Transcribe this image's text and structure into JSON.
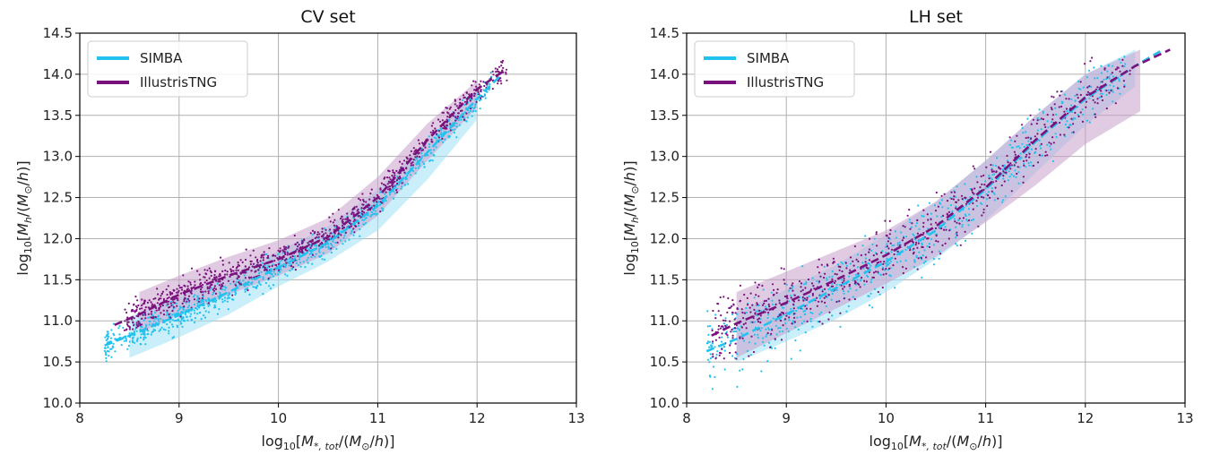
{
  "colors": {
    "simba": "#22c1ee",
    "tng": "#7a127d",
    "simba_band": "#9fe0f5",
    "tng_band": "#c8a0cc",
    "grid": "#b0b0b0"
  },
  "chart_data": [
    {
      "type": "scatter",
      "title": "CV set",
      "xlabel": "log10[M*,tot/(M⊙/h)]",
      "ylabel": "log10[Mh/(M⊙/h)]",
      "xlim": [
        8,
        13
      ],
      "ylim": [
        10.0,
        14.5
      ],
      "x_ticks": [
        "8",
        "9",
        "10",
        "11",
        "12",
        "13"
      ],
      "y_ticks": [
        "10.0",
        "10.5",
        "11.0",
        "11.5",
        "12.0",
        "12.5",
        "13.0",
        "13.5",
        "14.0",
        "14.5"
      ],
      "grid": true,
      "legend_position": "top-left",
      "series": [
        {
          "name": "SIMBA",
          "color_key": "simba",
          "mean_x": [
            8.25,
            8.5,
            9.0,
            9.5,
            10.0,
            10.5,
            11.0,
            11.5,
            12.0,
            12.25
          ],
          "mean_y": [
            10.7,
            10.82,
            11.07,
            11.35,
            11.65,
            11.95,
            12.4,
            13.05,
            13.7,
            14.0
          ],
          "band_x": [
            8.5,
            9.0,
            9.5,
            10.0,
            10.5,
            11.0,
            11.5,
            12.0
          ],
          "band_lo": [
            10.55,
            10.8,
            11.08,
            11.42,
            11.72,
            12.1,
            12.72,
            13.45
          ],
          "band_hi": [
            11.05,
            11.3,
            11.55,
            11.85,
            12.15,
            12.6,
            13.2,
            13.8
          ],
          "scatter_range": [
            8.25,
            12.15
          ]
        },
        {
          "name": "IllustrisTNG",
          "color_key": "tng",
          "mean_x": [
            8.35,
            8.6,
            9.0,
            9.5,
            10.0,
            10.5,
            11.0,
            11.5,
            12.0,
            12.28
          ],
          "mean_y": [
            10.95,
            11.08,
            11.32,
            11.55,
            11.75,
            12.02,
            12.5,
            13.2,
            13.82,
            14.05
          ],
          "band_x": [
            8.6,
            9.0,
            9.5,
            10.0,
            10.5,
            11.0,
            11.5,
            12.0
          ],
          "band_lo": [
            10.85,
            11.08,
            11.32,
            11.55,
            11.82,
            12.28,
            12.95,
            13.6
          ],
          "band_hi": [
            11.35,
            11.55,
            11.78,
            11.98,
            12.25,
            12.75,
            13.4,
            13.92
          ],
          "scatter_range": [
            8.45,
            12.3
          ]
        }
      ]
    },
    {
      "type": "scatter",
      "title": "LH set",
      "xlabel": "log10[M*,tot/(M⊙/h)]",
      "ylabel": "log10[Mh/(M⊙/h)]",
      "xlim": [
        8,
        13
      ],
      "ylim": [
        10.0,
        14.5
      ],
      "x_ticks": [
        "8",
        "9",
        "10",
        "11",
        "12",
        "13"
      ],
      "y_ticks": [
        "10.0",
        "10.5",
        "11.0",
        "11.5",
        "12.0",
        "12.5",
        "13.0",
        "13.5",
        "14.0",
        "14.5"
      ],
      "grid": true,
      "legend_position": "top-left",
      "series": [
        {
          "name": "SIMBA",
          "color_key": "simba",
          "mean_x": [
            8.2,
            8.5,
            9.0,
            9.5,
            10.0,
            10.5,
            11.0,
            11.5,
            12.0,
            12.5,
            12.75
          ],
          "mean_y": [
            10.63,
            10.78,
            11.08,
            11.4,
            11.72,
            12.1,
            12.6,
            13.18,
            13.7,
            14.1,
            14.28
          ],
          "band_x": [
            8.5,
            9.0,
            9.5,
            10.0,
            10.5,
            11.0,
            11.5,
            12.0,
            12.5
          ],
          "band_lo": [
            10.5,
            10.75,
            11.02,
            11.35,
            11.75,
            12.22,
            12.8,
            13.38,
            13.85
          ],
          "band_hi": [
            11.1,
            11.38,
            11.68,
            12.05,
            12.45,
            12.95,
            13.5,
            14.0,
            14.3
          ],
          "scatter_range": [
            8.2,
            12.4
          ]
        },
        {
          "name": "IllustrisTNG",
          "color_key": "tng",
          "mean_x": [
            8.25,
            8.5,
            9.0,
            9.5,
            10.0,
            10.5,
            11.0,
            11.5,
            12.0,
            12.5,
            12.85
          ],
          "mean_y": [
            10.82,
            10.97,
            11.22,
            11.5,
            11.8,
            12.15,
            12.62,
            13.2,
            13.72,
            14.1,
            14.3
          ],
          "band_x": [
            8.5,
            9.0,
            9.5,
            10.0,
            10.5,
            11.0,
            11.5,
            12.0,
            12.55
          ],
          "band_lo": [
            10.55,
            10.85,
            11.15,
            11.45,
            11.78,
            12.2,
            12.65,
            13.15,
            13.55
          ],
          "band_hi": [
            11.35,
            11.6,
            11.85,
            12.1,
            12.45,
            12.95,
            13.5,
            14.0,
            14.3
          ],
          "scatter_range": [
            8.25,
            12.45
          ]
        }
      ]
    }
  ]
}
